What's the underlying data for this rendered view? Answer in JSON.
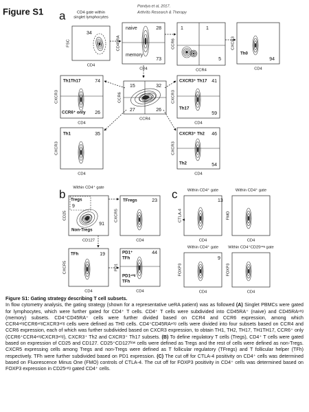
{
  "figure": {
    "label": "Figure S1",
    "citation": [
      "Pandya et al, 2017.",
      "Arthritis Research & Therapy"
    ],
    "panel_letters": [
      "a",
      "b",
      "c"
    ],
    "plots": [
      {
        "header": [
          "CD4 gate within",
          "singlet lymphocytes"
        ],
        "y_label": "FSC",
        "x_label": "CD4",
        "texts": [
          34
        ]
      },
      {
        "y_label": "CD45RA",
        "x_label": "CD4",
        "texts": [
          "naive",
          28,
          "memory",
          73
        ]
      },
      {
        "y_label": "CCR6",
        "x_label": "CCR4",
        "texts": [
          1,
          1,
          5
        ]
      },
      {
        "y_label": "CXCR3",
        "x_label": "CD4",
        "texts": [
          "Th0",
          94
        ]
      },
      {
        "y_label": "CXCR3",
        "x_label": "CD4",
        "texts": [
          "Th1Th17",
          74,
          "CCR6⁺ only",
          26
        ]
      },
      {
        "y_label": "CCR6",
        "x_label": "CCR4",
        "texts": [
          15,
          32,
          27,
          26
        ]
      },
      {
        "y_label": "CXCR3",
        "x_label": "CD4",
        "texts": [
          "CXCR3⁺ Th17",
          41,
          "Th17",
          59
        ]
      },
      {
        "y_label": "CXCR3",
        "x_label": "CD4",
        "texts": [
          "Th1",
          35
        ]
      },
      {
        "y_label": "CXCR3",
        "x_label": "CD4",
        "texts": [
          "CXCR3⁺ Th2",
          46,
          "Th2",
          54
        ]
      },
      {
        "header": [
          "Within CD4⁺ gate"
        ],
        "y_label": "CD25",
        "x_label": "CD127",
        "texts": [
          "Tregs",
          9,
          "Non-Tregs",
          91
        ]
      },
      {
        "y_label": "CXCR5",
        "x_label": "CD4",
        "texts": [
          "TFregs",
          23
        ]
      },
      {
        "y_label": "CXCR5",
        "x_label": "CD4",
        "texts": [
          "TFh",
          19
        ]
      },
      {
        "y_label": "PD1",
        "x_label": "CD4",
        "texts": [
          "PD1⁺",
          "TFh",
          44,
          "PD1ⁿᵉᵍ",
          "TFh"
        ]
      },
      {
        "header": [
          "Within CD4⁺ gate"
        ],
        "y_label": "CTLA-4",
        "x_label": "CD4",
        "texts": [
          13
        ]
      },
      {
        "header": [
          "Within CD4⁺ gate"
        ],
        "y_label": "FMO",
        "x_label": "CD4",
        "texts": []
      },
      {
        "header": [
          "Within CD4⁺ gate"
        ],
        "y_label": "FOXP3",
        "x_label": "CD4",
        "texts": [
          9
        ]
      },
      {
        "header": [
          "Within CD4⁺CD25ⁿᵉᵍ gate"
        ],
        "y_label": "FOXP3",
        "x_label": "CD4",
        "texts": []
      }
    ]
  },
  "caption": {
    "title": "Figure S1: Gating strategy describing T cell subsets.",
    "intro": "In flow cytometry analysis, the gating strategy (shown for a representative ueRA patient) was as followed",
    "a_label": "(A)",
    "a_text": "Singlet PBMCs were gated for lymphocytes, which were further gated for CD4⁺ T cells. CD4⁺ T cells were subdivided into CD45RA⁺ (naive) and CD45RAⁿᵉᵍ (memory) subsets. CD4⁺CD45RA⁺ cells were further divided based on CCR4 and CCR6 expression, among which CCR4ⁿᵉᵍCCR6ⁿᵉᵍCXCR3ⁿᵉᵍ cells were defined as TH0 cells. CD4⁺CD45RAⁿᵉᵍ cells were divided into four subsets based on CCR4 and CCR6 expression, each of which was further subdivided based on CXCR3 expression, to obtain TH1, TH2, TH17, TH1TH17, CCR6⁺ only (CCR6⁺CCR4ⁿᵉᵍCXCR3ⁿᵉᵍ), CXCR3⁺ Th2 and CXCR3⁺ Th17 subsets.",
    "b_label": "(B)",
    "b_text": "To define regulatory T cells (Tregs), CD4⁺ T cells were gated based on expression of CD25 and CD127. CD25⁺CD127ˡᵒʷ cells were defined as Tregs and the rest of cells were defined as non-Tregs. CXCR5 expressing cells among Tregs and non-Tregs were defined as T follicular regulatory (TFregs) and T follicular helper (TFh) respectively. TFh were further subdivided based on PD1 expression.",
    "c_label": "(C)",
    "c_text": "The cut off for CTLA-4 positivity on CD4⁺ cells was determined based on Fluorescence Minus One (FMO) controls of CTLA-4. The cut off for FOXP3 positivity in CD4⁺ cells was determined based on FOXP3 expression in CD25ⁿᵉᵍ gated CD4⁺ cells."
  }
}
